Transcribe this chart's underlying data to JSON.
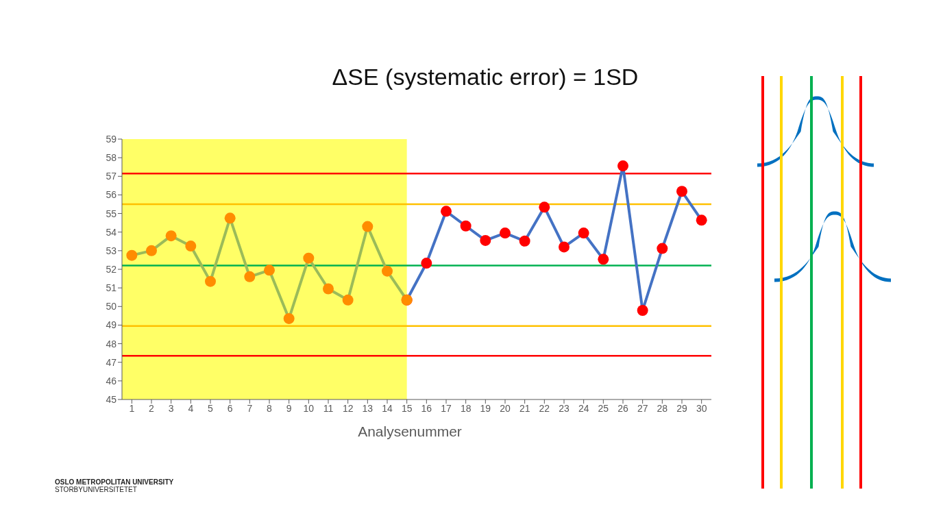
{
  "chart_data": {
    "type": "line",
    "title": "ΔSE (systematic error) = 1SD",
    "xlabel": "Analysenummer",
    "xlim": [
      0.5,
      30.5
    ],
    "xticks": [
      1,
      2,
      3,
      4,
      5,
      6,
      7,
      8,
      9,
      10,
      11,
      12,
      13,
      14,
      15,
      16,
      17,
      18,
      19,
      20,
      21,
      22,
      23,
      24,
      25,
      26,
      27,
      28,
      29,
      30
    ],
    "ylim": [
      45,
      59
    ],
    "yticks": [
      45,
      46,
      47,
      48,
      49,
      50,
      51,
      52,
      53,
      54,
      55,
      56,
      57,
      58,
      59
    ],
    "grid": false,
    "marker": "circle",
    "line_style": "solid",
    "series": [
      {
        "type": "line",
        "color": "#4472c4",
        "x": [
          15,
          16,
          17,
          18,
          19,
          20,
          21,
          22,
          23,
          24,
          25,
          26,
          27,
          28,
          29,
          30
        ],
        "values": [
          50.35,
          52.33,
          55.12,
          54.33,
          53.55,
          53.95,
          53.52,
          55.34,
          53.2,
          53.95,
          52.54,
          57.56,
          49.79,
          53.12,
          56.19,
          54.64
        ],
        "colors": [
          "#ff0000",
          "#ff0000",
          "#ff0000",
          "#ff0000",
          "#ff0000",
          "#ff0000",
          "#ff0000",
          "#ff0000",
          "#ff0000",
          "#ff0000",
          "#ff0000",
          "#ff0000",
          "#ff0000",
          "#ff0000",
          "#ff0000",
          "#ff0000"
        ]
      },
      {
        "type": "line",
        "color": "#9bbb59",
        "x": [
          1,
          2,
          3,
          4,
          5,
          6,
          7,
          8,
          9,
          10,
          11,
          12,
          13,
          14,
          15
        ],
        "values": [
          52.75,
          53.0,
          53.8,
          53.25,
          51.35,
          54.75,
          51.6,
          51.95,
          49.35,
          52.6,
          50.95,
          50.35,
          54.3,
          51.9,
          50.35
        ],
        "colors": [
          "#ff8c00",
          "#ff8c00",
          "#ff8c00",
          "#ff8c00",
          "#ff8c00",
          "#ff8c00",
          "#ff8c00",
          "#ff8c00",
          "#ff8c00",
          "#ff8c00",
          "#ff8c00",
          "#ff8c00",
          "#ff8c00",
          "#ff8c00",
          "#ff8c00"
        ]
      }
    ],
    "bands": [
      {
        "axis": "x",
        "from": 0.5,
        "to": 15,
        "color": "#ffff66"
      }
    ],
    "ref_lines": [
      {
        "axis": "y",
        "value": 57.15,
        "color": "#ff0000"
      },
      {
        "axis": "y",
        "value": 55.5,
        "color": "#ffc000"
      },
      {
        "axis": "y",
        "value": 52.2,
        "color": "#00b050"
      },
      {
        "axis": "y",
        "value": 48.95,
        "color": "#ffc000"
      },
      {
        "axis": "y",
        "value": 47.35,
        "color": "#ff0000"
      }
    ],
    "annotations": [
      "OSLO METROPOLITAN UNIVERSITY",
      "STORBYUNIVERSITETET"
    ]
  }
}
